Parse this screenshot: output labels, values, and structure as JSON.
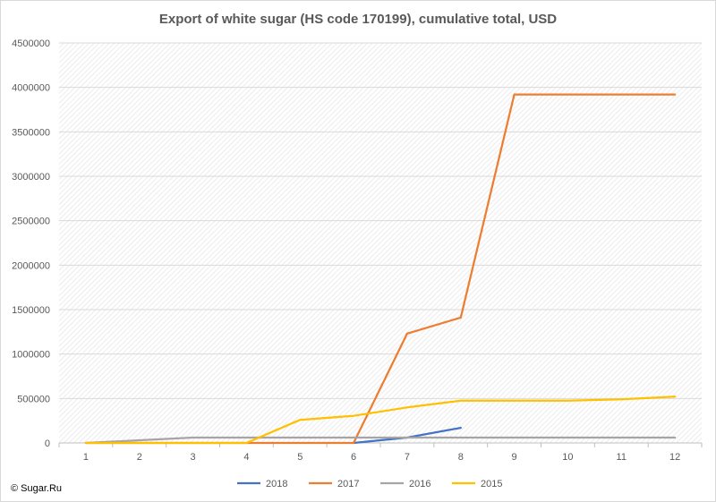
{
  "chart_data": {
    "type": "line",
    "title": "Export of white sugar (HS code 170199), cumulative total, USD",
    "xlabel": "",
    "ylabel": "",
    "x": [
      1,
      2,
      3,
      4,
      5,
      6,
      7,
      8,
      9,
      10,
      11,
      12
    ],
    "x_tick_labels": [
      "1",
      "2",
      "3",
      "4",
      "5",
      "6",
      "7",
      "8",
      "9",
      "10",
      "11",
      "12"
    ],
    "ylim": [
      0,
      4500000
    ],
    "y_ticks": [
      0,
      500000,
      1000000,
      1500000,
      2000000,
      2500000,
      3000000,
      3500000,
      4000000,
      4500000
    ],
    "y_tick_labels": [
      "0",
      "500000",
      "1000000",
      "1500000",
      "2000000",
      "2500000",
      "3000000",
      "3500000",
      "4000000",
      "4500000"
    ],
    "grid": true,
    "legend_position": "bottom",
    "series": [
      {
        "name": "2018",
        "color": "#4472c4",
        "values": [
          null,
          null,
          null,
          null,
          null,
          0,
          60000,
          170000,
          null,
          null,
          null,
          null
        ]
      },
      {
        "name": "2017",
        "color": "#ed7d31",
        "values": [
          0,
          0,
          0,
          0,
          0,
          0,
          1230000,
          1410000,
          3920000,
          3920000,
          3920000,
          3920000
        ]
      },
      {
        "name": "2016",
        "color": "#a5a5a5",
        "values": [
          0,
          30000,
          60000,
          60000,
          60000,
          60000,
          60000,
          60000,
          60000,
          60000,
          60000,
          60000
        ]
      },
      {
        "name": "2015",
        "color": "#ffc000",
        "values": [
          0,
          0,
          0,
          0,
          260000,
          305000,
          400000,
          475000,
          475000,
          475000,
          490000,
          520000
        ]
      }
    ]
  },
  "footer": {
    "copyright": "© Sugar.Ru"
  }
}
